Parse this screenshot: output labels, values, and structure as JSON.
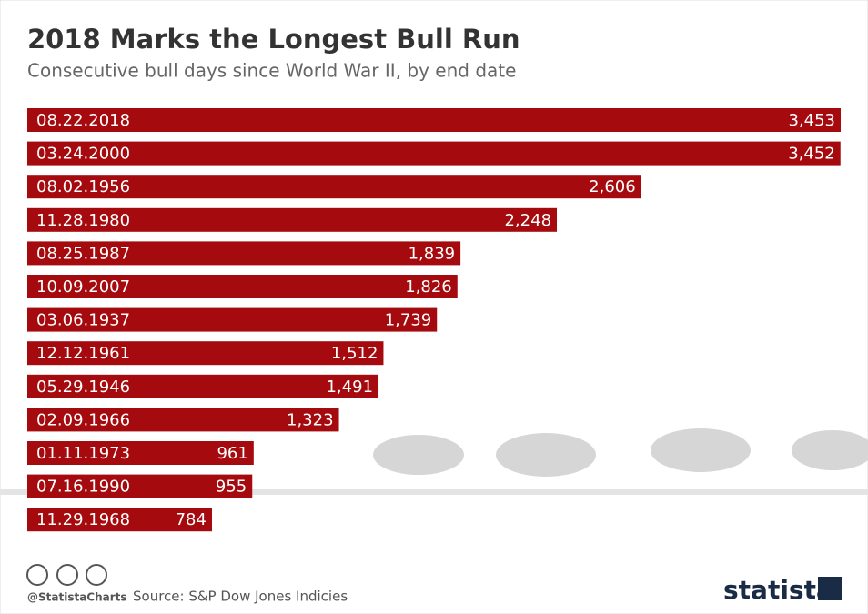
{
  "chart_data": {
    "type": "bar",
    "orientation": "horizontal",
    "title": "2018 Marks the Longest Bull Run",
    "subtitle": "Consecutive bull days since World War II, by end date",
    "categories": [
      "08.22.2018",
      "03.24.2000",
      "08.02.1956",
      "11.28.1980",
      "08.25.1987",
      "10.09.2007",
      "03.06.1937",
      "12.12.1961",
      "05.29.1946",
      "02.09.1966",
      "01.11.1973",
      "07.16.1990",
      "11.29.1968"
    ],
    "values": [
      3453,
      3452,
      2606,
      2248,
      1839,
      1826,
      1739,
      1512,
      1491,
      1323,
      961,
      955,
      784
    ],
    "value_labels": [
      "3,453",
      "3,452",
      "2,606",
      "2,248",
      "1,839",
      "1,826",
      "1,739",
      "1,512",
      "1,491",
      "1,323",
      "961",
      "955",
      "784"
    ],
    "color": "#a50b0e",
    "credit": "@StatistaCharts",
    "source": "Source: S&P Dow Jones Indicies",
    "logo": "statista"
  }
}
